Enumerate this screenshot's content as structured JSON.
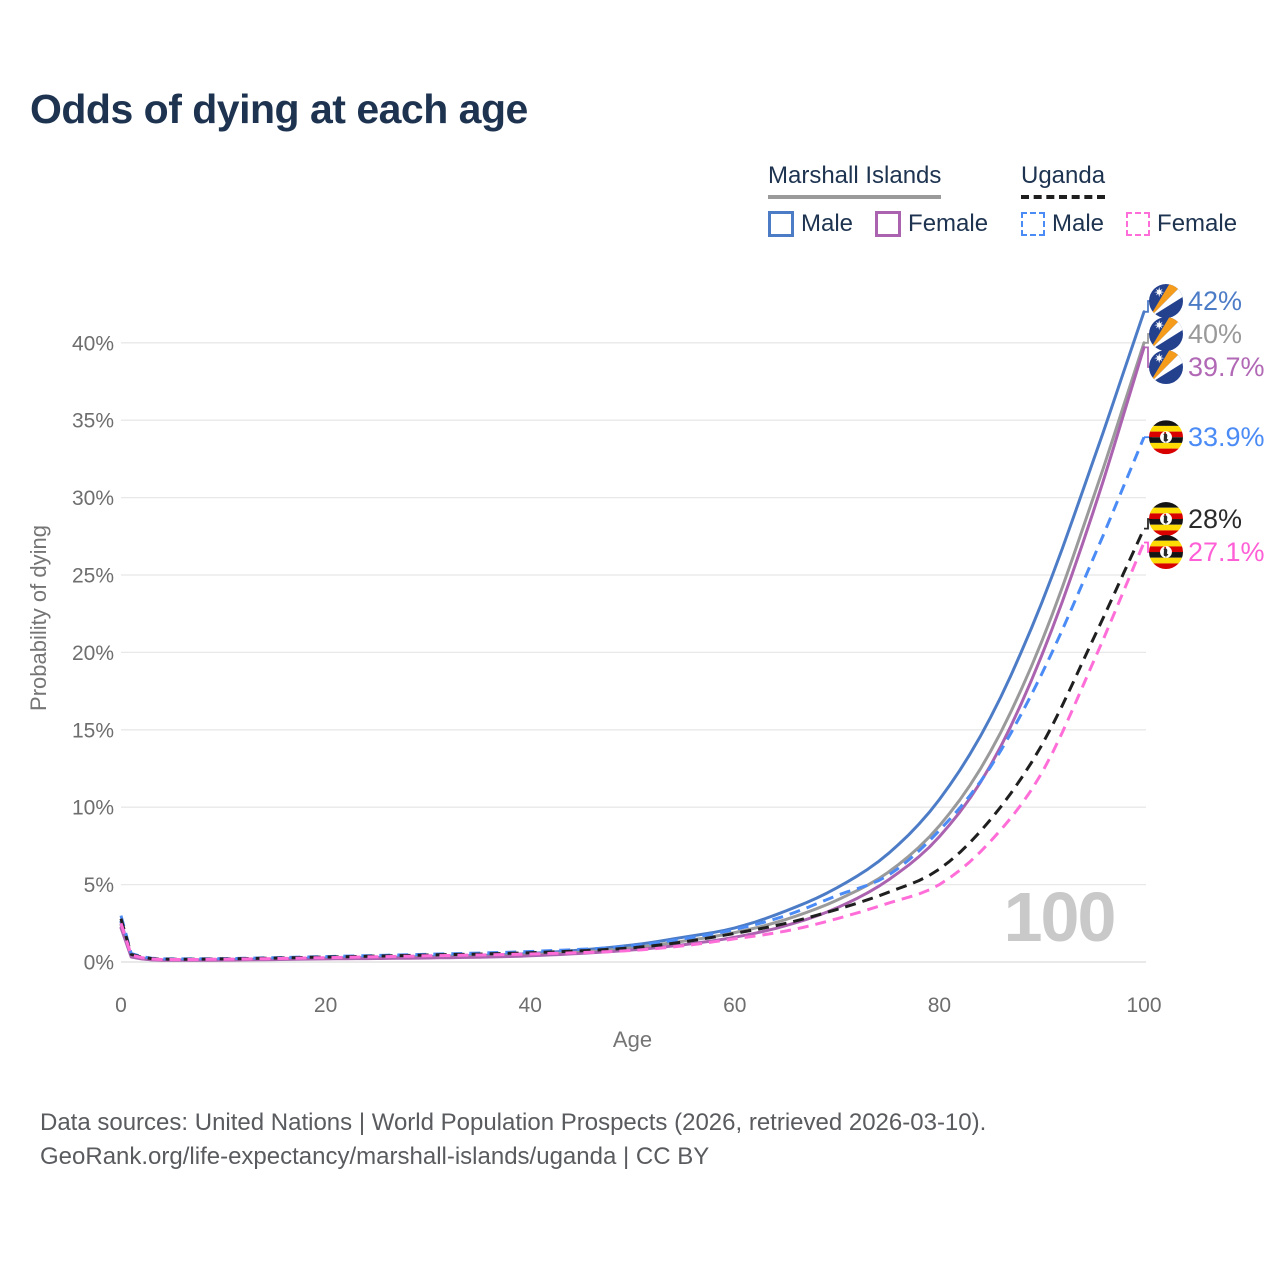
{
  "title": "Odds of dying at each age",
  "legend": {
    "groups": [
      {
        "name": "Marshall Islands",
        "line_color": "#9a9a9a",
        "line_style": "solid",
        "items": [
          {
            "label": "Male",
            "color": "#4d7cc7",
            "style": "solid"
          },
          {
            "label": "Female",
            "color": "#ab63b0",
            "style": "solid"
          }
        ]
      },
      {
        "name": "Uganda",
        "line_color": "#1f1f1f",
        "line_style": "dashed",
        "items": [
          {
            "label": "Male",
            "color": "#4b8bf5",
            "style": "dashed"
          },
          {
            "label": "Female",
            "color": "#ff6ed8",
            "style": "dashed"
          }
        ]
      }
    ]
  },
  "chart_data": {
    "type": "line",
    "title": "Odds of dying at each age",
    "xlabel": "Age",
    "ylabel": "Probability of dying",
    "xlim": [
      0,
      100
    ],
    "ylim": [
      0,
      43.5
    ],
    "x_ticks": [
      0,
      20,
      40,
      60,
      80,
      100
    ],
    "y_ticks": [
      0,
      5,
      10,
      15,
      20,
      25,
      30,
      35,
      40
    ],
    "y_tick_suffix": "%",
    "grid": true,
    "legend_position": "top-right",
    "watermark": "100",
    "series": [
      {
        "name": "Marshall Islands — Male",
        "flag": "marshall-islands",
        "color": "#4d7cc7",
        "dash": false,
        "end_value": 42,
        "points": [
          [
            0,
            2.6
          ],
          [
            1,
            0.4
          ],
          [
            5,
            0.13
          ],
          [
            10,
            0.15
          ],
          [
            20,
            0.25
          ],
          [
            30,
            0.35
          ],
          [
            40,
            0.55
          ],
          [
            50,
            1.1
          ],
          [
            55,
            1.6
          ],
          [
            60,
            2.2
          ],
          [
            65,
            3.3
          ],
          [
            70,
            4.8
          ],
          [
            75,
            7.0
          ],
          [
            80,
            10.5
          ],
          [
            85,
            15.8
          ],
          [
            90,
            23.2
          ],
          [
            95,
            32.3
          ],
          [
            100,
            42
          ]
        ]
      },
      {
        "name": "Marshall Islands — Both sexes",
        "flag": "marshall-islands",
        "color": "#9a9a9a",
        "dash": false,
        "end_value": 40,
        "points": [
          [
            0,
            2.4
          ],
          [
            1,
            0.36
          ],
          [
            5,
            0.12
          ],
          [
            10,
            0.13
          ],
          [
            20,
            0.22
          ],
          [
            30,
            0.3
          ],
          [
            40,
            0.46
          ],
          [
            50,
            0.92
          ],
          [
            55,
            1.35
          ],
          [
            60,
            1.9
          ],
          [
            65,
            2.75
          ],
          [
            70,
            4.0
          ],
          [
            75,
            5.8
          ],
          [
            80,
            8.8
          ],
          [
            85,
            13.6
          ],
          [
            90,
            20.7
          ],
          [
            95,
            29.9
          ],
          [
            100,
            40
          ]
        ]
      },
      {
        "name": "Marshall Islands — Female",
        "flag": "marshall-islands",
        "color": "#ab63b0",
        "dash": false,
        "end_value": 39.7,
        "points": [
          [
            0,
            2.2
          ],
          [
            1,
            0.32
          ],
          [
            5,
            0.11
          ],
          [
            10,
            0.12
          ],
          [
            20,
            0.2
          ],
          [
            30,
            0.26
          ],
          [
            40,
            0.4
          ],
          [
            50,
            0.78
          ],
          [
            55,
            1.12
          ],
          [
            60,
            1.6
          ],
          [
            65,
            2.35
          ],
          [
            70,
            3.5
          ],
          [
            75,
            5.3
          ],
          [
            80,
            8.1
          ],
          [
            85,
            12.7
          ],
          [
            90,
            19.8
          ],
          [
            95,
            29.0
          ],
          [
            100,
            39.7
          ]
        ]
      },
      {
        "name": "Uganda — Male",
        "flag": "uganda",
        "color": "#4b8bf5",
        "dash": true,
        "end_value": 33.9,
        "points": [
          [
            0,
            3.0
          ],
          [
            1,
            0.55
          ],
          [
            5,
            0.2
          ],
          [
            10,
            0.22
          ],
          [
            20,
            0.35
          ],
          [
            30,
            0.5
          ],
          [
            40,
            0.68
          ],
          [
            50,
            1.05
          ],
          [
            55,
            1.5
          ],
          [
            60,
            2.1
          ],
          [
            65,
            3.0
          ],
          [
            70,
            4.3
          ],
          [
            75,
            5.6
          ],
          [
            80,
            8.5
          ],
          [
            85,
            12.6
          ],
          [
            90,
            18.6
          ],
          [
            95,
            26.0
          ],
          [
            100,
            33.9
          ]
        ]
      },
      {
        "name": "Uganda — Both sexes",
        "flag": "uganda",
        "color": "#1f1f1f",
        "dash": true,
        "end_value": 28,
        "points": [
          [
            0,
            2.8
          ],
          [
            1,
            0.5
          ],
          [
            5,
            0.18
          ],
          [
            10,
            0.2
          ],
          [
            20,
            0.32
          ],
          [
            30,
            0.45
          ],
          [
            40,
            0.6
          ],
          [
            50,
            0.92
          ],
          [
            55,
            1.3
          ],
          [
            60,
            1.85
          ],
          [
            65,
            2.5
          ],
          [
            70,
            3.4
          ],
          [
            75,
            4.5
          ],
          [
            80,
            6.0
          ],
          [
            85,
            9.2
          ],
          [
            90,
            14.0
          ],
          [
            95,
            20.8
          ],
          [
            100,
            28
          ]
        ]
      },
      {
        "name": "Uganda — Female",
        "flag": "uganda",
        "color": "#ff6ed8",
        "dash": true,
        "end_value": 27.1,
        "points": [
          [
            0,
            2.5
          ],
          [
            1,
            0.45
          ],
          [
            5,
            0.16
          ],
          [
            10,
            0.18
          ],
          [
            20,
            0.28
          ],
          [
            30,
            0.4
          ],
          [
            40,
            0.52
          ],
          [
            50,
            0.75
          ],
          [
            55,
            1.05
          ],
          [
            60,
            1.5
          ],
          [
            65,
            2.0
          ],
          [
            70,
            2.8
          ],
          [
            75,
            3.8
          ],
          [
            80,
            5.0
          ],
          [
            85,
            7.8
          ],
          [
            90,
            12.2
          ],
          [
            95,
            19.3
          ],
          [
            100,
            27.1
          ]
        ]
      }
    ],
    "end_labels": [
      {
        "text": "42%",
        "value": 42,
        "flag": "marshall-islands",
        "color": "#4d7cc7"
      },
      {
        "text": "40%",
        "value": 40,
        "flag": "marshall-islands",
        "color": "#9a9a9a"
      },
      {
        "text": "39.7%",
        "value": 39.7,
        "flag": "marshall-islands",
        "color": "#b168b5"
      },
      {
        "text": "33.9%",
        "value": 33.9,
        "flag": "uganda",
        "color": "#4b8bf5"
      },
      {
        "text": "28%",
        "value": 28,
        "flag": "uganda",
        "color": "#2b2b2b"
      },
      {
        "text": "27.1%",
        "value": 27.1,
        "flag": "uganda",
        "color": "#ff5fd6"
      }
    ]
  },
  "footer": {
    "line1": "Data sources: United Nations | World Population Prospects (2026, retrieved 2026-03-10).",
    "line2": "GeoRank.org/life-expectancy/marshall-islands/uganda | CC BY"
  }
}
